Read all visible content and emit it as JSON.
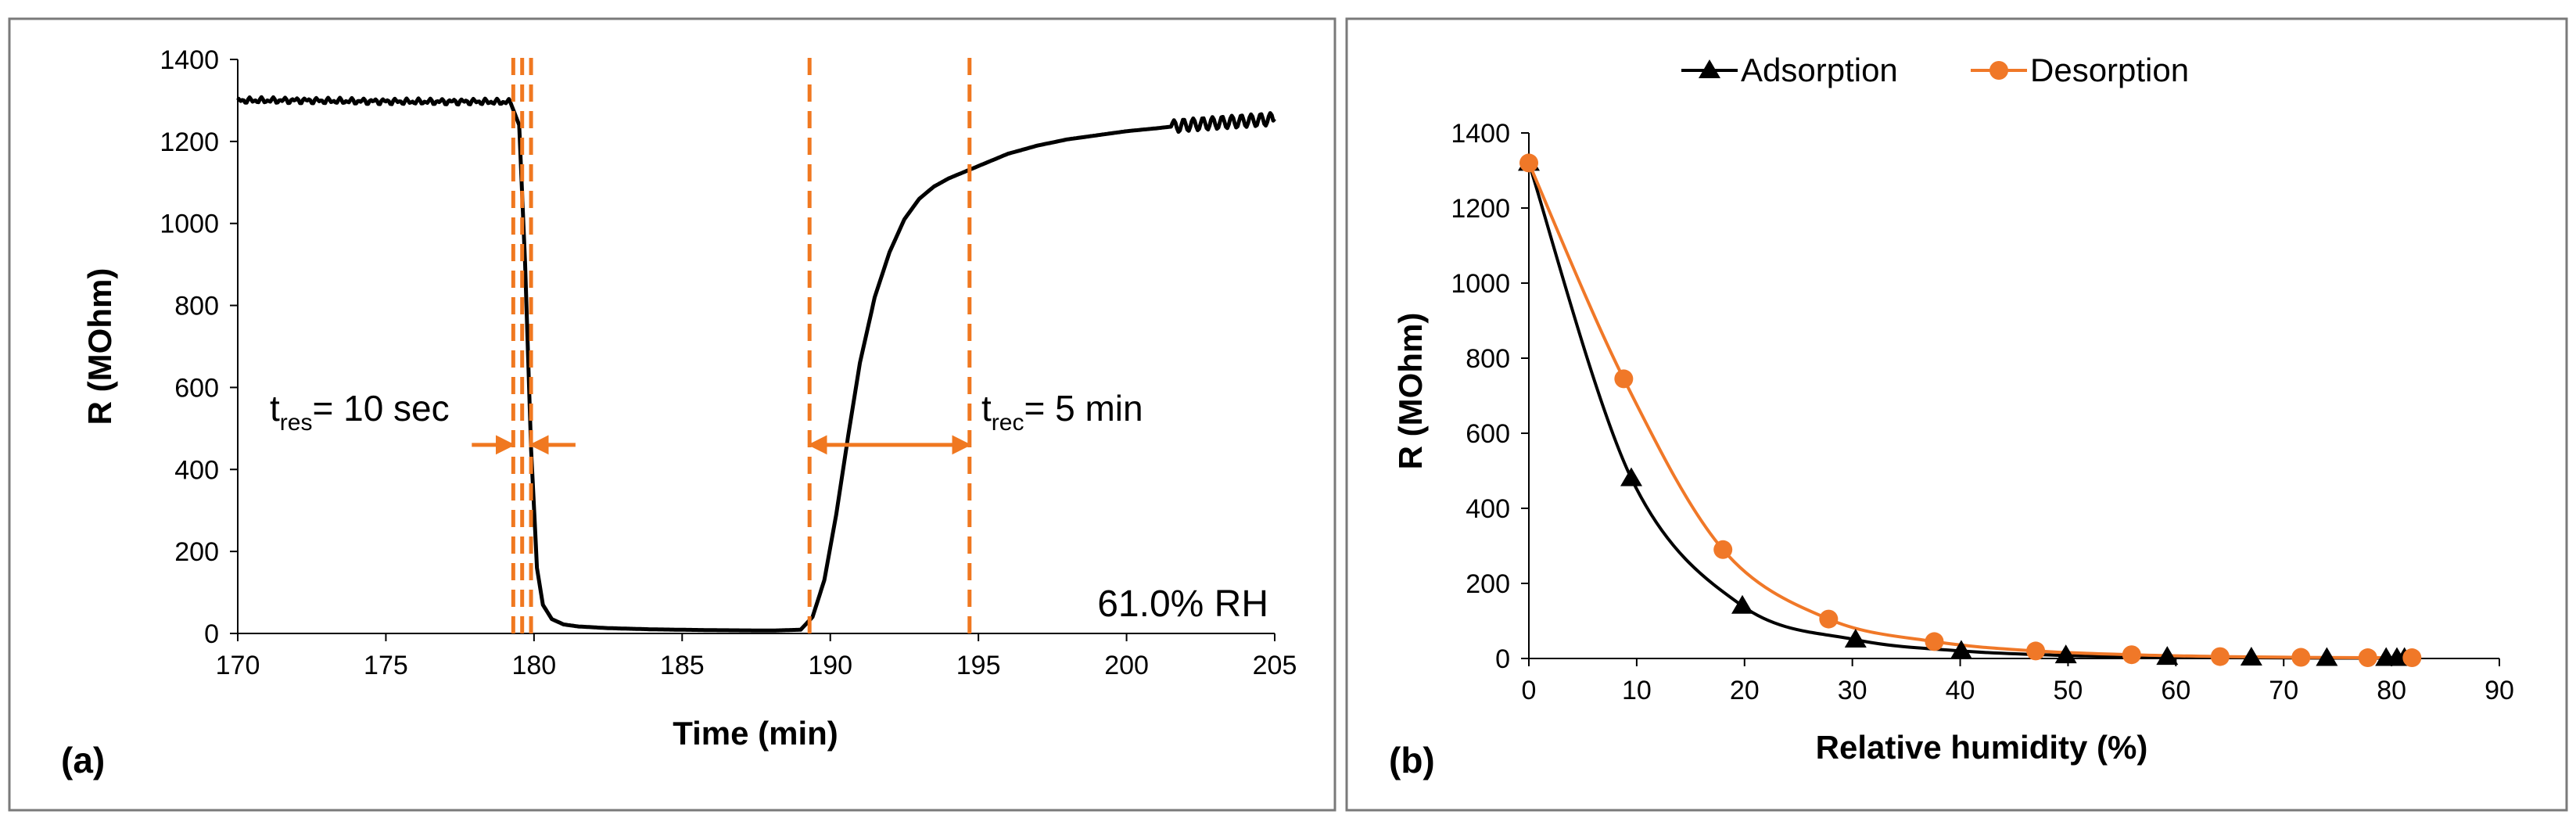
{
  "chart_data": [
    {
      "type": "line",
      "panel_label": "(a)",
      "xlabel": "Time (min)",
      "ylabel": "R (MOhm)",
      "xlim": [
        170,
        205
      ],
      "ylim": [
        0,
        1400
      ],
      "x_ticks": [
        170,
        175,
        180,
        185,
        190,
        195,
        200,
        205
      ],
      "y_ticks": [
        0,
        200,
        400,
        600,
        800,
        1000,
        1200,
        1400
      ],
      "x_tick_labels": [
        "170",
        "175",
        "180",
        "185",
        "190",
        "195",
        "200",
        "205"
      ],
      "y_tick_labels": [
        "0",
        "200",
        "400",
        "600",
        "800",
        "1000",
        "1200",
        "1400"
      ],
      "grid": false,
      "series": [
        {
          "name": "R",
          "color": "#000000",
          "x": [
            170.0,
            172.0,
            174.0,
            176.0,
            178.0,
            179.2,
            179.5,
            179.7,
            179.9,
            180.1,
            180.3,
            180.6,
            181.0,
            181.5,
            182.5,
            184.0,
            186.0,
            188.0,
            189.0,
            189.4,
            189.8,
            190.2,
            190.6,
            191.0,
            191.5,
            192.0,
            192.5,
            193.0,
            193.5,
            194.0,
            194.5,
            195.0,
            196.0,
            197.0,
            198.0,
            199.0,
            200.0,
            201.0,
            202.0,
            203.0,
            204.0,
            205.0
          ],
          "y": [
            1300,
            1300,
            1298,
            1297,
            1297,
            1296,
            1240,
            900,
            450,
            160,
            70,
            35,
            22,
            17,
            13,
            10,
            8,
            7,
            9,
            40,
            130,
            290,
            480,
            660,
            820,
            930,
            1010,
            1060,
            1090,
            1110,
            1125,
            1140,
            1170,
            1190,
            1205,
            1215,
            1225,
            1232,
            1240,
            1245,
            1250,
            1255
          ],
          "noise_amplitude_before": 8,
          "noise_amplitude_after": 15
        }
      ],
      "markers": [
        {
          "type": "vline",
          "x": 179.3,
          "color": "#f07820",
          "style": "dashed"
        },
        {
          "type": "vline",
          "x": 179.6,
          "color": "#f07820",
          "style": "dashed"
        },
        {
          "type": "vline",
          "x": 179.9,
          "color": "#f07820",
          "style": "dashed"
        },
        {
          "type": "vline",
          "x": 189.3,
          "color": "#f07820",
          "style": "dashed"
        },
        {
          "type": "vline",
          "x": 194.7,
          "color": "#f07820",
          "style": "dashed"
        }
      ],
      "annotations": [
        {
          "id": "tres",
          "base": "t",
          "sub": "res",
          "rest": "= 10 sec",
          "x": 171.5,
          "y": 670
        },
        {
          "id": "trec",
          "base": "t",
          "sub": "rec",
          "rest": "= 5 min",
          "x": 195.5,
          "y": 670
        },
        {
          "id": "rh",
          "text": "61.0% RH",
          "x": 204,
          "y": 90
        }
      ],
      "arrows": [
        {
          "id": "tres-left",
          "from": [
            177.9,
            460
          ],
          "to": [
            179.3,
            460
          ],
          "color": "#f07820"
        },
        {
          "id": "tres-right",
          "from": [
            181.4,
            460
          ],
          "to": [
            179.9,
            460
          ],
          "color": "#f07820"
        },
        {
          "id": "trec-double",
          "from": [
            189.3,
            460
          ],
          "to": [
            194.7,
            460
          ],
          "color": "#f07820",
          "double": true
        }
      ]
    },
    {
      "type": "scatter",
      "panel_label": "(b)",
      "xlabel": "Relative humidity (%)",
      "ylabel": "R (MOhm)",
      "xlim": [
        0,
        90
      ],
      "ylim": [
        0,
        1400
      ],
      "x_ticks": [
        0,
        10,
        20,
        30,
        40,
        50,
        60,
        70,
        80,
        90
      ],
      "y_ticks": [
        0,
        200,
        400,
        600,
        800,
        1000,
        1200,
        1400
      ],
      "x_tick_labels": [
        "0",
        "10",
        "20",
        "30",
        "40",
        "50",
        "60",
        "70",
        "80",
        "90"
      ],
      "y_tick_labels": [
        "0",
        "200",
        "400",
        "600",
        "800",
        "1000",
        "1200",
        "1400"
      ],
      "grid": false,
      "legend": [
        "Adsorption",
        "Desorption"
      ],
      "legend_position": "top",
      "series": [
        {
          "name": "Adsorption",
          "color": "#000000",
          "marker": "triangle",
          "smooth": true,
          "x": [
            0,
            9.5,
            19.8,
            30.3,
            40.1,
            49.8,
            59.2,
            67.0,
            74.0,
            79.5,
            80.5,
            81.2
          ],
          "y": [
            1320,
            480,
            140,
            50,
            20,
            8,
            4,
            2,
            1,
            1,
            1,
            1
          ]
        },
        {
          "name": "Desorption",
          "color": "#f07828",
          "marker": "circle",
          "smooth": true,
          "x": [
            0,
            8.8,
            18.0,
            27.8,
            37.6,
            47.0,
            55.9,
            64.1,
            71.6,
            77.8,
            81.9
          ],
          "y": [
            1320,
            745,
            290,
            105,
            45,
            20,
            10,
            5,
            3,
            2,
            2
          ]
        }
      ]
    }
  ]
}
